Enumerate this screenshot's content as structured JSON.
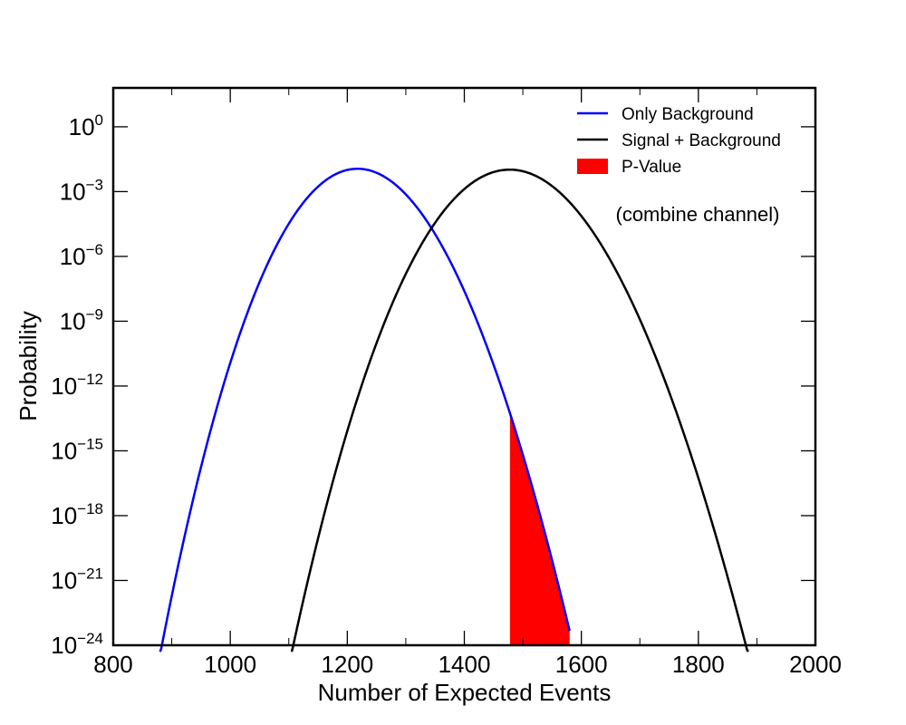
{
  "chart_data": {
    "type": "line",
    "title": "",
    "xlabel": "Number of Expected Events",
    "ylabel": "Probability",
    "xlim": [
      800,
      2000
    ],
    "ylim_log10": [
      -24,
      1.8
    ],
    "yscale": "log",
    "grid": false,
    "legend_position": "top-right",
    "annotation": "(combine channel)",
    "xticks": [
      800,
      1000,
      1200,
      1400,
      1600,
      1800,
      2000
    ],
    "xtick_labels": [
      "800",
      "1000",
      "1200",
      "1400",
      "1600",
      "1800",
      "2000"
    ],
    "yticks_log10": [
      0,
      -3,
      -6,
      -9,
      -12,
      -15,
      -18,
      -21,
      -24
    ],
    "ytick_base": "10",
    "ytick_exponents": [
      "0",
      "−3",
      "−6",
      "−9",
      "−12",
      "−15",
      "−18",
      "−21",
      "−24"
    ],
    "series": [
      {
        "name": "Only Background",
        "color": "#0000ff",
        "distribution": "poisson",
        "mean": 1218,
        "x_range": [
          880,
          1580
        ]
      },
      {
        "name": "Signal + Background",
        "color": "#000000",
        "distribution": "poisson",
        "mean": 1478,
        "x_range": [
          1105,
          1885
        ]
      }
    ],
    "shaded_region": {
      "name": "P-Value",
      "color": "#ff0000",
      "under_series": "Only Background",
      "x_range": [
        1478,
        1580
      ]
    }
  },
  "legend": {
    "items": [
      {
        "label": "Only Background",
        "color": "#0000ff",
        "kind": "line"
      },
      {
        "label": "Signal + Background",
        "color": "#000000",
        "kind": "line"
      },
      {
        "label": "P-Value",
        "color": "#ff0000",
        "kind": "patch"
      }
    ]
  }
}
